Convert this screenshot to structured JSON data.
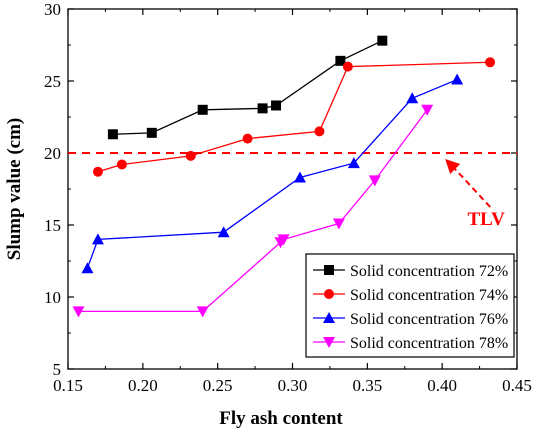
{
  "chart_data": {
    "type": "line",
    "xlabel": "Fly ash content",
    "ylabel": "Slump value (cm)",
    "xlim": [
      0.15,
      0.45
    ],
    "ylim": [
      5,
      30
    ],
    "xticks": [
      0.15,
      0.2,
      0.25,
      0.3,
      0.35,
      0.4,
      0.45
    ],
    "xtick_labels": [
      "0.15",
      "0.20",
      "0.25",
      "0.30",
      "0.35",
      "0.40",
      "0.45"
    ],
    "yticks": [
      5,
      10,
      15,
      20,
      25,
      30
    ],
    "ytick_labels": [
      "5",
      "10",
      "15",
      "20",
      "25",
      "30"
    ],
    "grid": false,
    "legend_position": "bottom-right",
    "series": [
      {
        "name": "Solid concentration 72%",
        "color": "#000000",
        "marker": "square",
        "x": [
          0.18,
          0.206,
          0.24,
          0.28,
          0.289,
          0.332,
          0.36
        ],
        "y": [
          21.3,
          21.4,
          23.0,
          23.1,
          23.3,
          26.4,
          27.8
        ]
      },
      {
        "name": "Solid concentration 74%",
        "color": "#ff0000",
        "marker": "circle",
        "x": [
          0.17,
          0.186,
          0.232,
          0.27,
          0.318,
          0.337,
          0.432
        ],
        "y": [
          18.7,
          19.2,
          19.8,
          21.0,
          21.5,
          26.0,
          26.3
        ]
      },
      {
        "name": "Solid concentration 76%",
        "color": "#0000ff",
        "marker": "triangle-up",
        "x": [
          0.163,
          0.17,
          0.254,
          0.305,
          0.341,
          0.38,
          0.41
        ],
        "y": [
          12.0,
          14.0,
          14.5,
          18.3,
          19.3,
          23.8,
          25.1
        ]
      },
      {
        "name": "Solid concentration 78%",
        "color": "#ff00ff",
        "marker": "triangle-down",
        "x": [
          0.157,
          0.24,
          0.292,
          0.294,
          0.331,
          0.355,
          0.39
        ],
        "y": [
          9.0,
          9.0,
          13.8,
          14.0,
          15.1,
          18.1,
          23.0
        ]
      }
    ],
    "reference_line": {
      "y": 20,
      "label": "TLV",
      "color": "#ff0000",
      "style": "dashed"
    },
    "annotations": [
      {
        "text": "TLV",
        "color": "#ff0000",
        "arrow_to": {
          "x": 0.4,
          "y": 20
        }
      }
    ]
  }
}
